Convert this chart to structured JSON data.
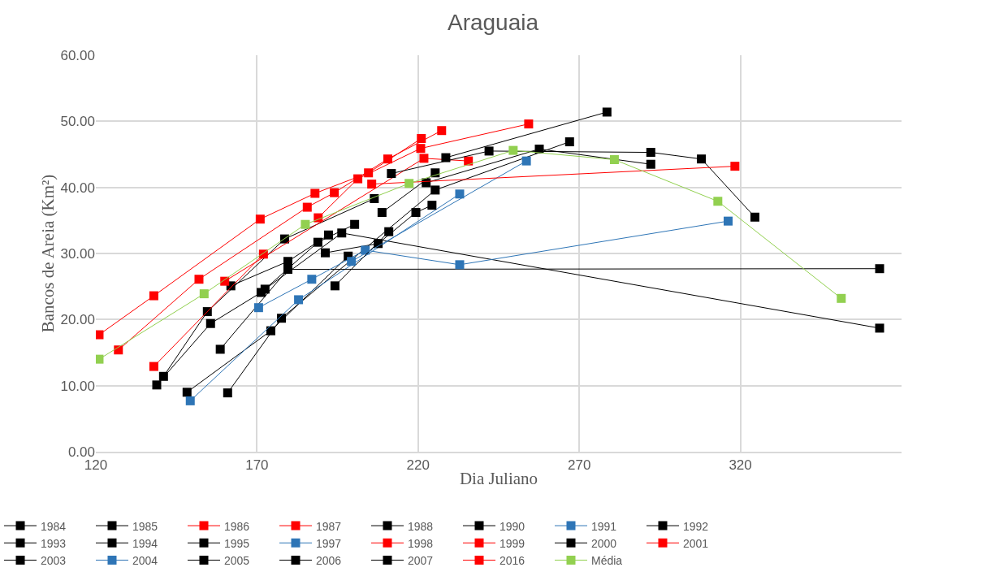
{
  "chart_data": {
    "type": "line",
    "title": "Araguaia",
    "xlabel": "Dia Juliano",
    "ylabel": "Bancos de Areia (Km²)",
    "xlim": [
      120,
      370
    ],
    "xticks": [
      120,
      170,
      220,
      270,
      320
    ],
    "ylim": [
      0,
      60
    ],
    "yticks": [
      {
        "value": 0,
        "label": "0.00"
      },
      {
        "value": 10,
        "label": "10.00"
      },
      {
        "value": 20,
        "label": "20.00"
      },
      {
        "value": 30,
        "label": "30.00"
      },
      {
        "value": 40,
        "label": "40.00"
      },
      {
        "value": 50,
        "label": "50.00"
      },
      {
        "value": 60,
        "label": "60.00"
      }
    ],
    "grid": true,
    "legend": "bottom",
    "marker": "square",
    "line_style": "solid",
    "series": [
      {
        "name": "1984",
        "color": "#000000",
        "x": [
          138.9,
          155.6,
          171.3,
          188.9,
          200.3
        ],
        "values": [
          10.1,
          19.4,
          24.1,
          31.7,
          34.4
        ]
      },
      {
        "name": "1985",
        "color": "#000000",
        "x": [
          141,
          154.6,
          178.6,
          206.4
        ],
        "values": [
          11.4,
          21.2,
          32.2,
          38.3
        ]
      },
      {
        "name": "1986",
        "color": "#ff0000",
        "x": [
          121,
          138,
          171,
          188,
          204.6,
          221
        ],
        "values": [
          17.7,
          23.6,
          35.2,
          39.1,
          42.2,
          47.4
        ]
      },
      {
        "name": "1987",
        "color": "#ff0000",
        "x": [
          127,
          152,
          185.6,
          194,
          210.6,
          227.3
        ],
        "values": [
          15.4,
          26.1,
          37.0,
          39.2,
          44.3,
          48.6
        ]
      },
      {
        "name": "1988",
        "color": "#000000",
        "x": [
          148.3,
          174.3,
          198.3
        ],
        "values": [
          9.0,
          18.3,
          29.6
        ]
      },
      {
        "name": "1990",
        "color": "#000000",
        "x": [
          160.9,
          177.6,
          225.3,
          267
        ],
        "values": [
          8.9,
          20.2,
          39.6,
          46.9
        ]
      },
      {
        "name": "1991",
        "color": "#2e75b6",
        "x": [
          149.3,
          182.9,
          232.9
        ],
        "values": [
          7.7,
          23.0,
          39.0
        ]
      },
      {
        "name": "1992",
        "color": "#000000",
        "x": [
          158.6,
          179.6,
          363.2
        ],
        "values": [
          15.5,
          27.6,
          27.7
        ]
      },
      {
        "name": "1993",
        "color": "#000000",
        "x": [
          161.9,
          179.6,
          192.2
        ],
        "values": [
          25.1,
          28.8,
          32.8
        ]
      },
      {
        "name": "1994",
        "color": "#000000",
        "x": [
          172.5,
          196.3,
          363.2
        ],
        "values": [
          24.6,
          33.1,
          18.7
        ]
      },
      {
        "name": "1995",
        "color": "#000000",
        "x": [
          191.2,
          207.6,
          219.3,
          224.3
        ],
        "values": [
          30.1,
          31.5,
          36.2,
          37.3
        ]
      },
      {
        "name": "1997",
        "color": "#2e75b6",
        "x": [
          170.5,
          187,
          203.6,
          232.9,
          316.2
        ],
        "values": [
          21.8,
          26.1,
          30.5,
          28.3,
          34.9
        ]
      },
      {
        "name": "1998",
        "color": "#ff0000",
        "x": [
          189,
          201.3,
          220.8,
          254.3
        ],
        "values": [
          35.4,
          41.3,
          45.9,
          49.6
        ]
      },
      {
        "name": "1999",
        "color": "#ff0000",
        "x": [
          138,
          172
        ],
        "values": [
          12.9,
          29.9
        ]
      },
      {
        "name": "2000",
        "color": "#000000",
        "x": [
          194.2,
          210.9
        ],
        "values": [
          25.1,
          33.3
        ]
      },
      {
        "name": "2001",
        "color": "#ff0000",
        "x": [
          160,
          221.8,
          235.6
        ],
        "values": [
          25.8,
          44.4,
          44.0
        ]
      },
      {
        "name": "2003",
        "color": "#000000",
        "x": [
          208.8,
          225.3
        ],
        "values": [
          36.2,
          42.2
        ]
      },
      {
        "name": "2004",
        "color": "#2e75b6",
        "x": [
          199.3,
          253.6
        ],
        "values": [
          28.8,
          44.0
        ]
      },
      {
        "name": "2005",
        "color": "#000000",
        "x": [
          211.7,
          242,
          292.2,
          307.9,
          324.5
        ],
        "values": [
          42.1,
          45.5,
          45.3,
          44.3,
          35.5
        ]
      },
      {
        "name": "2006",
        "color": "#000000",
        "x": [
          228.6,
          278.6
        ],
        "values": [
          44.5,
          51.4
        ]
      },
      {
        "name": "2007",
        "color": "#000000",
        "x": [
          222.5,
          257.6,
          292.2
        ],
        "values": [
          40.7,
          45.8,
          43.5
        ]
      },
      {
        "name": "2016",
        "color": "#ff0000",
        "x": [
          205.6,
          318.3
        ],
        "values": [
          40.5,
          43.2
        ]
      },
      {
        "name": "Média",
        "color": "#92d050",
        "x": [
          121,
          153.6,
          185,
          217.2,
          249.5,
          280.9,
          313,
          351.3
        ],
        "values": [
          14.0,
          23.9,
          34.4,
          40.6,
          45.6,
          44.2,
          37.9,
          23.2
        ]
      }
    ]
  }
}
